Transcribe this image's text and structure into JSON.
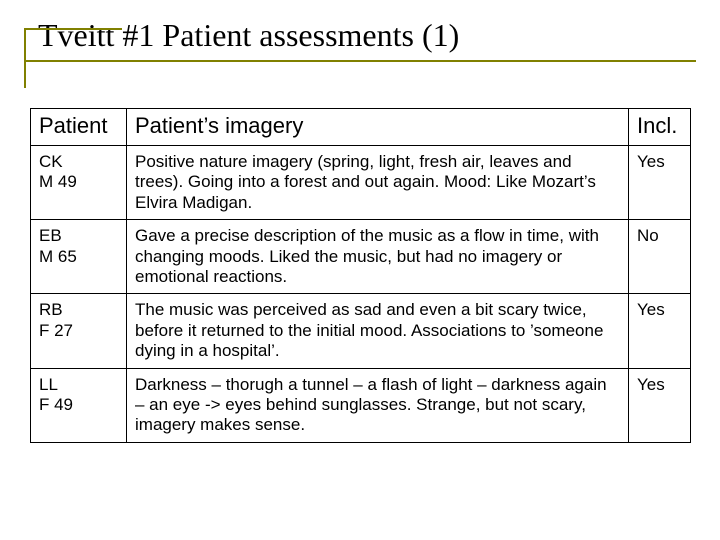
{
  "title": "Tveitt #1 Patient assessments (1)",
  "accent_color": "#808000",
  "table": {
    "columns": [
      "Patient",
      "Patient’s imagery",
      "Incl."
    ],
    "rows": [
      {
        "patient_line1": "CK",
        "patient_line2": "M 49",
        "imagery": "Positive nature imagery (spring, light, fresh air, leaves and trees). Going into a forest and out again. Mood: Like Mozart’s Elvira Madigan.",
        "incl": "Yes"
      },
      {
        "patient_line1": "EB",
        "patient_line2": "M 65",
        "imagery": "Gave a precise description of the music as a flow in time, with changing moods. Liked the music, but had no imagery or emotional reactions.",
        "incl": "No"
      },
      {
        "patient_line1": "RB",
        "patient_line2": "F 27",
        "imagery": "The music was perceived as sad and even a bit scary twice, before it returned to the initial mood. Associations to ’someone dying in a hospital’.",
        "incl": "Yes"
      },
      {
        "patient_line1": "LL",
        "patient_line2": "F 49",
        "imagery": "Darkness – thorugh a tunnel – a flash of light – darkness again – an eye -> eyes behind sunglasses. Strange, but not scary, imagery makes sense.",
        "incl": "Yes"
      }
    ]
  }
}
